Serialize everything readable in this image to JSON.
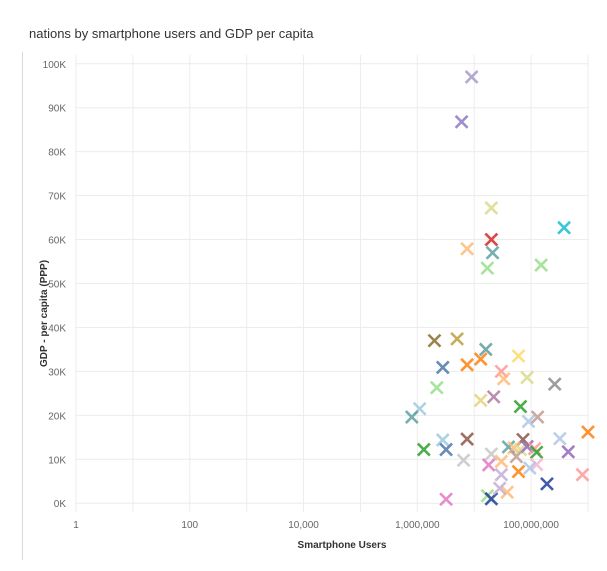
{
  "chart_data": {
    "type": "scatter",
    "title": "nations by smartphone users and GDP per capita",
    "xlabel": "Smartphone Users",
    "ylabel": "GDP - per capita (PPP)",
    "x_scale": "log",
    "xlim": [
      1,
      1000000000
    ],
    "ylim": [
      -2000,
      102000
    ],
    "x_ticks": [
      {
        "value": 1,
        "label": "1"
      },
      {
        "value": 100,
        "label": "100"
      },
      {
        "value": 10000,
        "label": "10,000"
      },
      {
        "value": 1000000,
        "label": "1,000,000"
      },
      {
        "value": 100000000,
        "label": "100,000,000"
      }
    ],
    "y_ticks": [
      {
        "value": 0,
        "label": "0K"
      },
      {
        "value": 10000,
        "label": "10K"
      },
      {
        "value": 20000,
        "label": "20K"
      },
      {
        "value": 30000,
        "label": "30K"
      },
      {
        "value": 40000,
        "label": "40K"
      },
      {
        "value": 50000,
        "label": "50K"
      },
      {
        "value": 60000,
        "label": "60K"
      },
      {
        "value": 70000,
        "label": "70K"
      },
      {
        "value": 80000,
        "label": "80K"
      },
      {
        "value": 90000,
        "label": "90K"
      },
      {
        "value": 100000,
        "label": "100K"
      }
    ],
    "grid": true,
    "marker": "x",
    "points": [
      {
        "x": 9000000,
        "y": 97000,
        "color": "#a89cc8"
      },
      {
        "x": 6000000,
        "y": 86800,
        "color": "#8e7cc3"
      },
      {
        "x": 20000000,
        "y": 67200,
        "color": "#dbdb8d"
      },
      {
        "x": 20000000,
        "y": 60000,
        "color": "#d62728"
      },
      {
        "x": 21000000,
        "y": 57000,
        "color": "#5fa2a3"
      },
      {
        "x": 7500000,
        "y": 57900,
        "color": "#ffbb78"
      },
      {
        "x": 17000000,
        "y": 53500,
        "color": "#98df8a"
      },
      {
        "x": 150000000,
        "y": 54200,
        "color": "#98df8a"
      },
      {
        "x": 380000000,
        "y": 62700,
        "color": "#17becf"
      },
      {
        "x": 2000000,
        "y": 37000,
        "color": "#8c6d31"
      },
      {
        "x": 5000000,
        "y": 37400,
        "color": "#bd9e39"
      },
      {
        "x": 16000000,
        "y": 35000,
        "color": "#5f9ea0"
      },
      {
        "x": 60000000,
        "y": 33500,
        "color": "#ffd966"
      },
      {
        "x": 13000000,
        "y": 32800,
        "color": "#ff7f0e"
      },
      {
        "x": 7500000,
        "y": 31500,
        "color": "#ff7f0e"
      },
      {
        "x": 2800000,
        "y": 30900,
        "color": "#4e79a7"
      },
      {
        "x": 30000000,
        "y": 30000,
        "color": "#ff9896"
      },
      {
        "x": 85000000,
        "y": 28600,
        "color": "#dbdb8d"
      },
      {
        "x": 33000000,
        "y": 28300,
        "color": "#ffbb78"
      },
      {
        "x": 260000000,
        "y": 27100,
        "color": "#8c8c8c"
      },
      {
        "x": 2200000,
        "y": 26300,
        "color": "#98df8a"
      },
      {
        "x": 22000000,
        "y": 24200,
        "color": "#b07aa1"
      },
      {
        "x": 13000000,
        "y": 23400,
        "color": "#e8d27a"
      },
      {
        "x": 65000000,
        "y": 22000,
        "color": "#2ca02c"
      },
      {
        "x": 1100000,
        "y": 21500,
        "color": "#9ecae1"
      },
      {
        "x": 800000,
        "y": 19600,
        "color": "#5fa2a3"
      },
      {
        "x": 90000000,
        "y": 18600,
        "color": "#aec7e8"
      },
      {
        "x": 130000000,
        "y": 19600,
        "color": "#c49c94"
      },
      {
        "x": 1000000000,
        "y": 16200,
        "color": "#ff7f0e"
      },
      {
        "x": 7500000,
        "y": 14600,
        "color": "#8c564b"
      },
      {
        "x": 2800000,
        "y": 14400,
        "color": "#9ecae1"
      },
      {
        "x": 72000000,
        "y": 14500,
        "color": "#8c564b"
      },
      {
        "x": 320000000,
        "y": 14700,
        "color": "#aec7e8"
      },
      {
        "x": 3200000,
        "y": 12200,
        "color": "#4e79a7"
      },
      {
        "x": 1300000,
        "y": 12200,
        "color": "#2ca02c"
      },
      {
        "x": 40000000,
        "y": 12800,
        "color": "#5fa2a3"
      },
      {
        "x": 50000000,
        "y": 12600,
        "color": "#ffbb78"
      },
      {
        "x": 65000000,
        "y": 12200,
        "color": "#dbdb8d"
      },
      {
        "x": 85000000,
        "y": 12900,
        "color": "#9467bd"
      },
      {
        "x": 115000000,
        "y": 12400,
        "color": "#ff9896"
      },
      {
        "x": 125000000,
        "y": 11600,
        "color": "#2ca02c"
      },
      {
        "x": 20000000,
        "y": 11200,
        "color": "#c7c7c7"
      },
      {
        "x": 55000000,
        "y": 10600,
        "color": "#c49c94"
      },
      {
        "x": 6500000,
        "y": 9800,
        "color": "#c7c7c7"
      },
      {
        "x": 30000000,
        "y": 9500,
        "color": "#ffbb78"
      },
      {
        "x": 450000000,
        "y": 11700,
        "color": "#9467bd"
      },
      {
        "x": 18000000,
        "y": 8700,
        "color": "#e377c2"
      },
      {
        "x": 125000000,
        "y": 8800,
        "color": "#f7b6d2"
      },
      {
        "x": 95000000,
        "y": 8000,
        "color": "#aec7e8"
      },
      {
        "x": 60000000,
        "y": 7200,
        "color": "#ff7f0e"
      },
      {
        "x": 30000000,
        "y": 6500,
        "color": "#c5b0d5"
      },
      {
        "x": 800000000,
        "y": 6500,
        "color": "#ff9896"
      },
      {
        "x": 190000000,
        "y": 4400,
        "color": "#1f3f99"
      },
      {
        "x": 38000000,
        "y": 2500,
        "color": "#ffbb78"
      },
      {
        "x": 17000000,
        "y": 1700,
        "color": "#98df8a"
      },
      {
        "x": 3200000,
        "y": 900,
        "color": "#e377c2"
      },
      {
        "x": 20000000,
        "y": 1000,
        "color": "#1f3f99"
      },
      {
        "x": 28000000,
        "y": 3400,
        "color": "#c5b0d5"
      }
    ]
  }
}
